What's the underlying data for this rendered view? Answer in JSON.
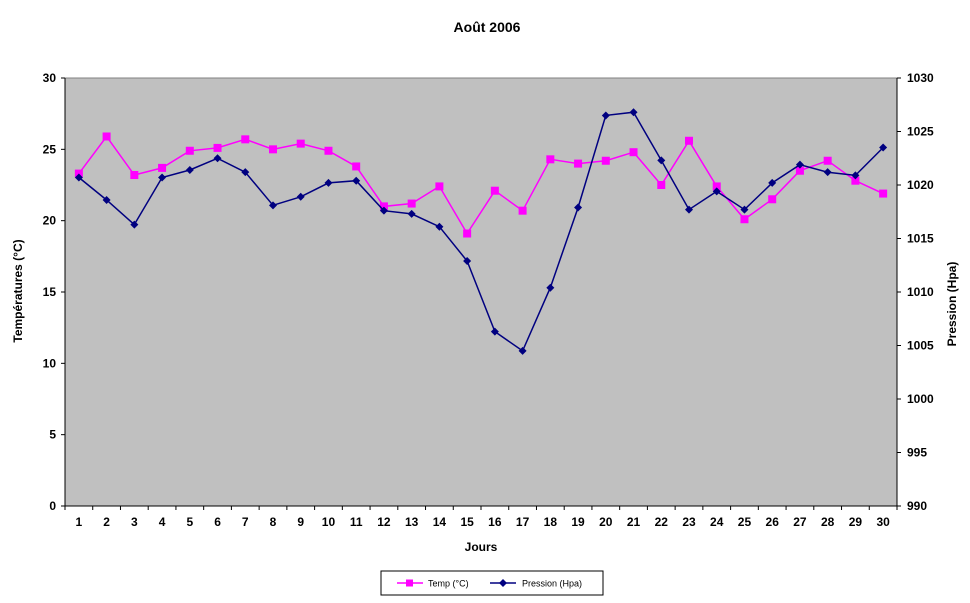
{
  "chart_data": {
    "type": "line",
    "title": "Août 2006",
    "xlabel": "Jours",
    "ylabel": "Températures (°C)",
    "y2label": "Pression (Hpa)",
    "x": [
      1,
      2,
      3,
      4,
      5,
      6,
      7,
      8,
      9,
      10,
      11,
      12,
      13,
      14,
      15,
      16,
      17,
      18,
      19,
      20,
      21,
      22,
      23,
      24,
      25,
      26,
      27,
      28,
      29,
      30
    ],
    "ylim": [
      0,
      30
    ],
    "yticks": [
      0,
      5,
      10,
      15,
      20,
      25,
      30
    ],
    "y2lim": [
      990,
      1030
    ],
    "y2ticks": [
      990,
      995,
      1000,
      1005,
      1010,
      1015,
      1020,
      1025,
      1030
    ],
    "grid": false,
    "plot_background": "#c0c0c0",
    "legend_position": "bottom-center",
    "series": [
      {
        "name": "Temp (°C)",
        "axis": "left",
        "color": "#ff00ff",
        "marker": "square",
        "values": [
          23.3,
          25.9,
          23.2,
          23.7,
          24.9,
          25.1,
          25.7,
          25.0,
          25.4,
          24.9,
          23.8,
          21.0,
          21.2,
          22.4,
          19.1,
          22.1,
          20.7,
          24.3,
          24.0,
          24.2,
          24.8,
          22.5,
          25.6,
          22.4,
          20.1,
          21.5,
          23.5,
          24.2,
          22.8,
          21.9
        ]
      },
      {
        "name": "Pression (Hpa)",
        "axis": "right",
        "color": "#000080",
        "marker": "diamond",
        "values": [
          1020.7,
          1018.6,
          1016.3,
          1020.7,
          1021.4,
          1022.5,
          1021.2,
          1018.1,
          1018.9,
          1020.2,
          1020.4,
          1017.6,
          1017.3,
          1016.1,
          1012.9,
          1006.3,
          1004.5,
          1010.4,
          1017.9,
          1026.5,
          1026.8,
          1022.3,
          1017.7,
          1019.4,
          1017.7,
          1020.2,
          1021.9,
          1021.2,
          1020.9,
          1023.5
        ]
      }
    ]
  }
}
